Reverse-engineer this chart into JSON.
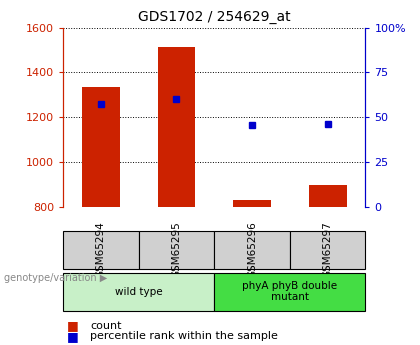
{
  "title": "GDS1702 / 254629_at",
  "categories": [
    "GSM65294",
    "GSM65295",
    "GSM65296",
    "GSM65297"
  ],
  "bar_bottoms": [
    800,
    800,
    800,
    800
  ],
  "bar_tops": [
    1335,
    1515,
    830,
    900
  ],
  "bar_color": "#cc2200",
  "blue_y": [
    1260,
    1280,
    1165,
    1170
  ],
  "blue_color": "#0000cc",
  "ylim_left": [
    800,
    1600
  ],
  "ylim_right": [
    0,
    100
  ],
  "yticks_left": [
    800,
    1000,
    1200,
    1400,
    1600
  ],
  "yticks_right": [
    0,
    25,
    50,
    75,
    100
  ],
  "ytick_labels_right": [
    "0",
    "25",
    "50",
    "75",
    "100%"
  ],
  "left_tick_color": "#cc2200",
  "right_tick_color": "#0000cc",
  "group_labels": [
    "wild type",
    "phyA phyB double\nmutant"
  ],
  "group_ranges": [
    [
      0,
      2
    ],
    [
      2,
      4
    ]
  ],
  "group_color_wt": "#c8f0c8",
  "group_color_mut": "#44dd44",
  "genotype_label": "genotype/variation",
  "legend_count": "count",
  "legend_percentile": "percentile rank within the sample",
  "bar_width": 0.5,
  "sample_box_color": "#d0d0d0"
}
